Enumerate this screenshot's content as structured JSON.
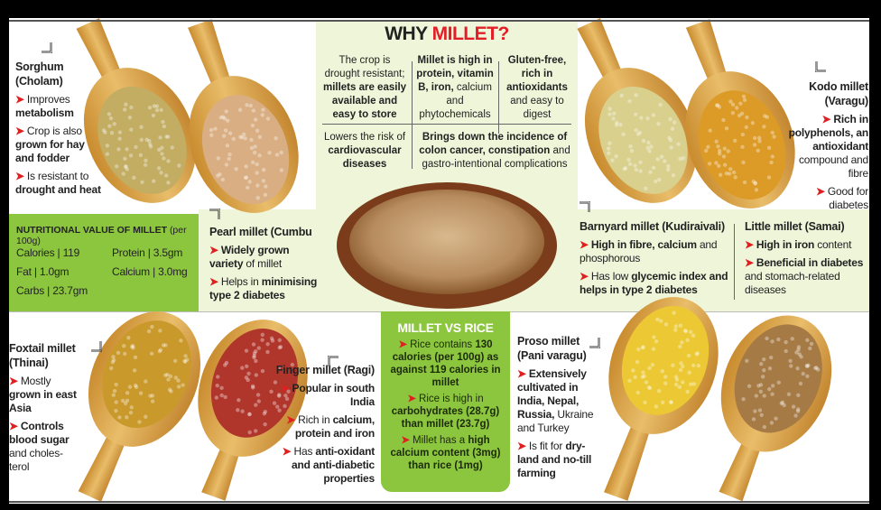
{
  "why": {
    "title_a": "WHY ",
    "title_b": "MILLET?",
    "title_b_color": "#e21f26",
    "points": [
      [
        {
          "t": "The crop is drought resistant; ",
          "b": false
        },
        {
          "t": "millets are easily available and easy to store",
          "b": true
        }
      ],
      [
        {
          "t": "Millet is high in protein, vitamin B, iron,",
          "b": true
        },
        {
          "t": " calcium and phytochemicals",
          "b": false
        }
      ],
      [
        {
          "t": "Gluten-free, rich in antioxidants",
          "b": true
        },
        {
          "t": " and easy to digest",
          "b": false
        }
      ],
      [
        {
          "t": "Lowers the risk of ",
          "b": false
        },
        {
          "t": "cardiovascular diseases",
          "b": true
        }
      ],
      [
        {
          "t": "Brings down the incidence of colon cancer, constipation",
          "b": true
        },
        {
          "t": " and gastro-intentional complications",
          "b": false
        }
      ]
    ]
  },
  "nutrition": {
    "title": "NUTRITIONAL VALUE OF MILLET",
    "unit": "(per 100g)",
    "items": [
      {
        "label": "Calories | 119"
      },
      {
        "label": "Protein | 3.5gm"
      },
      {
        "label": "Fat | 1.0gm"
      },
      {
        "label": "Calcium | 3.0mg"
      },
      {
        "label": "Carbs | 23.7gm"
      }
    ]
  },
  "millets": [
    {
      "key": "sorghum",
      "name": "Sorghum (Cholam)",
      "bullets": [
        [
          {
            "t": "Improves ",
            "b": false
          },
          {
            "t": "metabolism",
            "b": true
          }
        ],
        [
          {
            "t": "Crop is also ",
            "b": false
          },
          {
            "t": "grown for hay and fodder",
            "b": true
          }
        ],
        [
          {
            "t": "Is resistant to ",
            "b": false
          },
          {
            "t": "drought and heat",
            "b": true
          }
        ]
      ]
    },
    {
      "key": "kodo",
      "name": "Kodo millet (Varagu)",
      "bullets": [
        [
          {
            "t": "Rich in polyphenols, an antioxidant",
            "b": true
          },
          {
            "t": " compound and fibre",
            "b": false
          }
        ],
        [
          {
            "t": "Good for diabetes",
            "b": false
          }
        ]
      ]
    },
    {
      "key": "pearl",
      "name": "Pearl millet (Cumbu",
      "bullets": [
        [
          {
            "t": "Widely grown variety",
            "b": true
          },
          {
            "t": " of millet",
            "b": false
          }
        ],
        [
          {
            "t": "Helps in ",
            "b": false
          },
          {
            "t": "minimising type 2 diabetes",
            "b": true
          }
        ]
      ]
    },
    {
      "key": "barnyard",
      "name": "Barnyard millet (Kudiraivali)",
      "bullets": [
        [
          {
            "t": "High in fibre, calcium",
            "b": true
          },
          {
            "t": " and phosphorous",
            "b": false
          }
        ],
        [
          {
            "t": "Has low ",
            "b": false
          },
          {
            "t": "glycemic index and helps in type 2 diabetes",
            "b": true
          }
        ]
      ]
    },
    {
      "key": "little",
      "name": "Little millet (Samai)",
      "bullets": [
        [
          {
            "t": "High in iron",
            "b": true
          },
          {
            "t": " content",
            "b": false
          }
        ],
        [
          {
            "t": "Beneficial in diabetes",
            "b": true
          },
          {
            "t": " and stomach-related diseases",
            "b": false
          }
        ]
      ]
    },
    {
      "key": "foxtail",
      "name": "Foxtail millet (Thinai)",
      "bullets": [
        [
          {
            "t": "Mostly ",
            "b": false
          },
          {
            "t": "grown in east Asia",
            "b": true
          }
        ],
        [
          {
            "t": "Controls blood sugar",
            "b": true
          },
          {
            "t": " and choles-terol",
            "b": false
          }
        ]
      ]
    },
    {
      "key": "finger",
      "name": "Finger millet (Ragi)",
      "bullets": [
        [
          {
            "t": "Popular in south India",
            "b": true
          }
        ],
        [
          {
            "t": "Rich in ",
            "b": false
          },
          {
            "t": "calcium, protein and iron",
            "b": true
          }
        ],
        [
          {
            "t": "Has ",
            "b": false
          },
          {
            "t": "anti-oxidant and anti-diabetic properties",
            "b": true
          }
        ]
      ]
    },
    {
      "key": "proso",
      "name": "Proso millet (Pani varagu)",
      "bullets": [
        [
          {
            "t": "Extensively cultivated in India, Nepal, Russia,",
            "b": true
          },
          {
            "t": " Ukraine and Turkey",
            "b": false
          }
        ],
        [
          {
            "t": "Is fit for ",
            "b": false
          },
          {
            "t": "dry-land and no-till farming",
            "b": true
          }
        ]
      ]
    }
  ],
  "vs": {
    "title": "MILLET VS RICE",
    "points": [
      [
        {
          "t": "Rice contains ",
          "b": false
        },
        {
          "t": "130 calories (per 100g) as against 119 calories in millet",
          "b": true
        }
      ],
      [
        {
          "t": "Rice is high in ",
          "b": false
        },
        {
          "t": "carbohydrates (28.7g) than millet (23.7g)",
          "b": true
        }
      ],
      [
        {
          "t": "Millet has a ",
          "b": false
        },
        {
          "t": "high calcium content (3mg) than rice (1mg)",
          "b": true
        }
      ]
    ]
  },
  "colors": {
    "accent_green": "#8cc63f",
    "panel_green": "#eef5d9",
    "bullet_red": "#e02020",
    "spoon_wood": "#d9a441"
  },
  "spoons": [
    {
      "name": "sorghum-spoon",
      "grain": "#c2ad63"
    },
    {
      "name": "pearl-millet-spoon",
      "grain": "#d9ae82"
    },
    {
      "name": "barnyard-millet-spoon",
      "grain": "#d9d08e"
    },
    {
      "name": "kodo-millet-spoon",
      "grain": "#dc9a26"
    },
    {
      "name": "foxtail-millet-spoon",
      "grain": "#c9992c"
    },
    {
      "name": "finger-millet-spoon",
      "grain": "#b0362c"
    },
    {
      "name": "proso-millet-spoon",
      "grain": "#ecc934"
    },
    {
      "name": "little-millet-spoon",
      "grain": "#a57a45"
    }
  ]
}
